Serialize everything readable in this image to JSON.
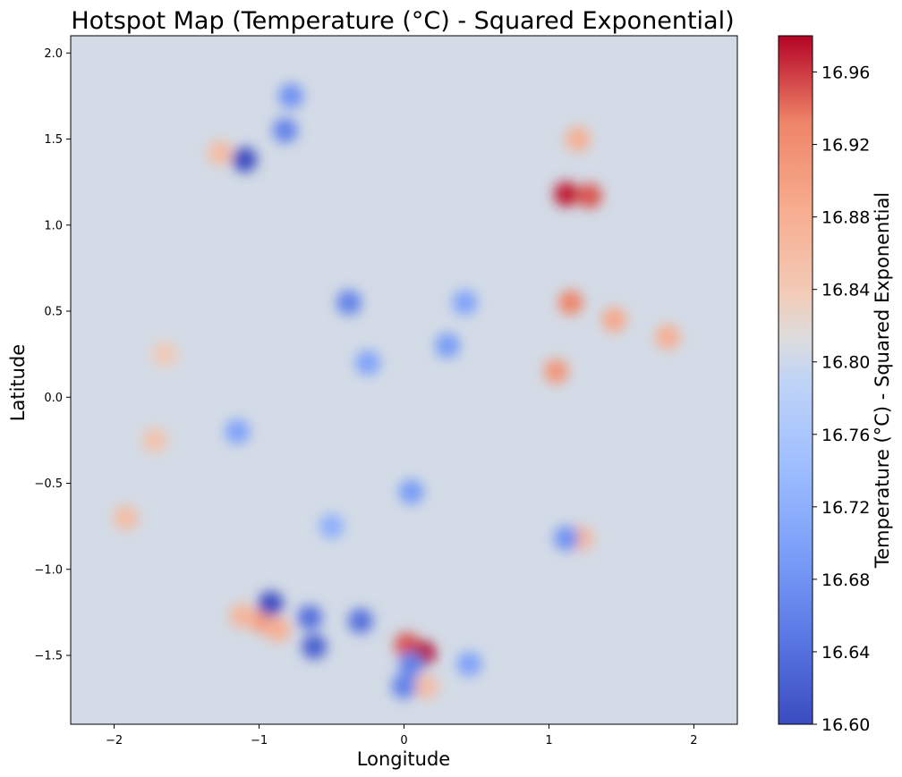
{
  "chart_data": {
    "type": "heatmap",
    "title": "Hotspot Map (Temperature (°C) - Squared Exponential)",
    "xlabel": "Longitude",
    "ylabel": "Latitude",
    "xlim": [
      -2.3,
      2.3
    ],
    "ylim": [
      -1.9,
      2.1
    ],
    "x_ticks": [
      -2,
      -1,
      0,
      1,
      2
    ],
    "x_tick_labels": [
      "−2",
      "−1",
      "0",
      "1",
      "2"
    ],
    "y_ticks": [
      -1.5,
      -1.0,
      -0.5,
      0.0,
      0.5,
      1.0,
      1.5,
      2.0
    ],
    "y_tick_labels": [
      "−1.5",
      "−1.0",
      "−0.5",
      "0.0",
      "0.5",
      "1.0",
      "1.5",
      "2.0"
    ],
    "colormap": "coolwarm",
    "background_value": 16.78,
    "colorbar": {
      "label": "Temperature (°C) - Squared Exponential",
      "min": 16.6,
      "max": 16.98,
      "ticks": [
        16.6,
        16.64,
        16.68,
        16.72,
        16.76,
        16.8,
        16.84,
        16.88,
        16.92,
        16.96
      ],
      "tick_labels": [
        "16.60",
        "16.64",
        "16.68",
        "16.72",
        "16.76",
        "16.80",
        "16.84",
        "16.88",
        "16.92",
        "16.96"
      ]
    },
    "hotspots": [
      {
        "x": 1.12,
        "y": 1.18,
        "value": 16.97
      },
      {
        "x": 1.28,
        "y": 1.17,
        "value": 16.95
      },
      {
        "x": 1.15,
        "y": 0.55,
        "value": 16.93
      },
      {
        "x": 1.05,
        "y": 0.15,
        "value": 16.91
      },
      {
        "x": 1.45,
        "y": 0.45,
        "value": 16.89
      },
      {
        "x": 1.82,
        "y": 0.35,
        "value": 16.88
      },
      {
        "x": 1.2,
        "y": 1.5,
        "value": 16.88
      },
      {
        "x": 0.02,
        "y": -1.44,
        "value": 16.95
      },
      {
        "x": 0.13,
        "y": -1.49,
        "value": 16.98
      },
      {
        "x": 0.15,
        "y": -1.68,
        "value": 16.86
      },
      {
        "x": -0.98,
        "y": -1.3,
        "value": 16.9
      },
      {
        "x": -0.87,
        "y": -1.35,
        "value": 16.88
      },
      {
        "x": -1.12,
        "y": -1.27,
        "value": 16.87
      },
      {
        "x": -1.92,
        "y": -0.7,
        "value": 16.86
      },
      {
        "x": -1.72,
        "y": -0.25,
        "value": 16.85
      },
      {
        "x": -1.65,
        "y": 0.25,
        "value": 16.84
      },
      {
        "x": -1.27,
        "y": 1.42,
        "value": 16.86
      },
      {
        "x": 1.22,
        "y": -0.82,
        "value": 16.87
      },
      {
        "x": -1.1,
        "y": 1.38,
        "value": 16.6
      },
      {
        "x": -0.82,
        "y": 1.55,
        "value": 16.66
      },
      {
        "x": -0.78,
        "y": 1.75,
        "value": 16.68
      },
      {
        "x": -0.92,
        "y": -1.2,
        "value": 16.6
      },
      {
        "x": -0.65,
        "y": -1.28,
        "value": 16.64
      },
      {
        "x": -0.3,
        "y": -1.3,
        "value": 16.64
      },
      {
        "x": -0.62,
        "y": -1.45,
        "value": 16.62
      },
      {
        "x": 0.05,
        "y": -1.55,
        "value": 16.66
      },
      {
        "x": 0.45,
        "y": -1.55,
        "value": 16.7
      },
      {
        "x": 0.0,
        "y": -1.68,
        "value": 16.66
      },
      {
        "x": -0.38,
        "y": 0.55,
        "value": 16.66
      },
      {
        "x": -0.25,
        "y": 0.2,
        "value": 16.7
      },
      {
        "x": 0.3,
        "y": 0.3,
        "value": 16.69
      },
      {
        "x": 0.42,
        "y": 0.55,
        "value": 16.7
      },
      {
        "x": 0.05,
        "y": -0.55,
        "value": 16.69
      },
      {
        "x": -1.15,
        "y": -0.2,
        "value": 16.7
      },
      {
        "x": 1.12,
        "y": -0.82,
        "value": 16.68
      },
      {
        "x": -0.5,
        "y": -0.75,
        "value": 16.72
      }
    ]
  }
}
